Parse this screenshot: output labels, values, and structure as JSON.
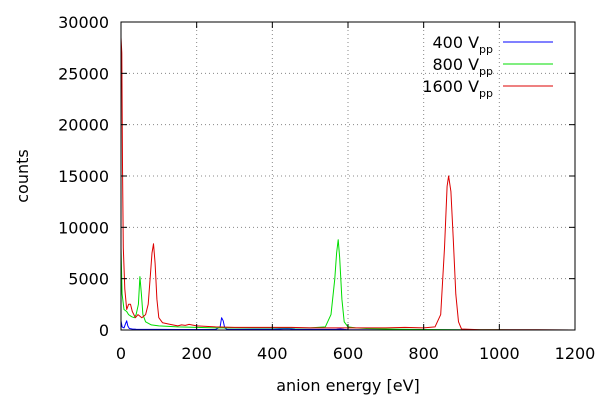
{
  "chart_data": {
    "type": "line",
    "xlabel": "anion energy [eV]",
    "ylabel": "counts",
    "xlim": [
      0,
      1200
    ],
    "ylim": [
      0,
      30000
    ],
    "x_ticks": [
      0,
      200,
      400,
      600,
      800,
      1000,
      1200
    ],
    "y_ticks": [
      0,
      5000,
      10000,
      15000,
      20000,
      25000,
      30000
    ],
    "grid": true,
    "legend_position": "top-right",
    "series": [
      {
        "name_main": "400 V",
        "name_sub": "pp",
        "color": "#0000ff",
        "points": [
          [
            -5,
            0
          ],
          [
            -2,
            1200
          ],
          [
            0,
            900
          ],
          [
            3,
            300
          ],
          [
            8,
            200
          ],
          [
            12,
            600
          ],
          [
            15,
            900
          ],
          [
            18,
            400
          ],
          [
            22,
            150
          ],
          [
            30,
            100
          ],
          [
            40,
            80
          ],
          [
            60,
            60
          ],
          [
            100,
            60
          ],
          [
            150,
            50
          ],
          [
            200,
            50
          ],
          [
            250,
            60
          ],
          [
            262,
            300
          ],
          [
            266,
            1200
          ],
          [
            270,
            900
          ],
          [
            274,
            200
          ],
          [
            280,
            80
          ],
          [
            300,
            60
          ],
          [
            350,
            80
          ],
          [
            400,
            70
          ],
          [
            440,
            120
          ],
          [
            460,
            80
          ],
          [
            500,
            60
          ],
          [
            550,
            60
          ],
          [
            570,
            80
          ],
          [
            580,
            100
          ],
          [
            590,
            60
          ],
          [
            600,
            30
          ],
          [
            650,
            20
          ],
          [
            700,
            20
          ],
          [
            800,
            10
          ],
          [
            1000,
            10
          ],
          [
            1200,
            0
          ]
        ]
      },
      {
        "name_main": "800 V",
        "name_sub": "pp",
        "color": "#00dd00",
        "points": [
          [
            -5,
            0
          ],
          [
            -3,
            12500
          ],
          [
            0,
            8000
          ],
          [
            3,
            3500
          ],
          [
            8,
            2000
          ],
          [
            15,
            1800
          ],
          [
            20,
            1500
          ],
          [
            28,
            1300
          ],
          [
            35,
            1200
          ],
          [
            40,
            1500
          ],
          [
            46,
            2500
          ],
          [
            50,
            5200
          ],
          [
            54,
            3500
          ],
          [
            58,
            1500
          ],
          [
            65,
            800
          ],
          [
            80,
            500
          ],
          [
            100,
            400
          ],
          [
            150,
            300
          ],
          [
            200,
            250
          ],
          [
            250,
            200
          ],
          [
            300,
            200
          ],
          [
            350,
            200
          ],
          [
            400,
            200
          ],
          [
            450,
            200
          ],
          [
            500,
            200
          ],
          [
            540,
            300
          ],
          [
            555,
            1500
          ],
          [
            565,
            5000
          ],
          [
            570,
            7500
          ],
          [
            574,
            8800
          ],
          [
            578,
            7000
          ],
          [
            584,
            3000
          ],
          [
            590,
            800
          ],
          [
            600,
            300
          ],
          [
            620,
            200
          ],
          [
            650,
            150
          ],
          [
            700,
            100
          ],
          [
            800,
            50
          ],
          [
            900,
            30
          ],
          [
            1000,
            20
          ],
          [
            1200,
            0
          ]
        ]
      },
      {
        "name_main": "1600 V",
        "name_sub": "pp",
        "color": "#dd0000",
        "points": [
          [
            -5,
            0
          ],
          [
            -2,
            15000
          ],
          [
            0,
            28500
          ],
          [
            2,
            27000
          ],
          [
            4,
            16000
          ],
          [
            6,
            8000
          ],
          [
            10,
            4000
          ],
          [
            15,
            2000
          ],
          [
            20,
            2500
          ],
          [
            25,
            2500
          ],
          [
            30,
            1800
          ],
          [
            38,
            1200
          ],
          [
            45,
            1500
          ],
          [
            55,
            1200
          ],
          [
            65,
            1500
          ],
          [
            72,
            2500
          ],
          [
            78,
            5500
          ],
          [
            82,
            7500
          ],
          [
            86,
            8400
          ],
          [
            90,
            6500
          ],
          [
            95,
            3000
          ],
          [
            100,
            1200
          ],
          [
            110,
            700
          ],
          [
            130,
            550
          ],
          [
            150,
            400
          ],
          [
            160,
            500
          ],
          [
            170,
            450
          ],
          [
            180,
            550
          ],
          [
            200,
            400
          ],
          [
            250,
            300
          ],
          [
            300,
            250
          ],
          [
            350,
            250
          ],
          [
            400,
            250
          ],
          [
            450,
            250
          ],
          [
            500,
            200
          ],
          [
            550,
            200
          ],
          [
            600,
            200
          ],
          [
            650,
            200
          ],
          [
            700,
            200
          ],
          [
            750,
            250
          ],
          [
            800,
            200
          ],
          [
            830,
            300
          ],
          [
            845,
            1500
          ],
          [
            855,
            8000
          ],
          [
            862,
            14000
          ],
          [
            866,
            15000
          ],
          [
            872,
            13500
          ],
          [
            878,
            9000
          ],
          [
            885,
            3500
          ],
          [
            892,
            800
          ],
          [
            900,
            100
          ],
          [
            950,
            20
          ],
          [
            1000,
            20
          ],
          [
            1100,
            20
          ],
          [
            1200,
            0
          ]
        ]
      }
    ]
  }
}
